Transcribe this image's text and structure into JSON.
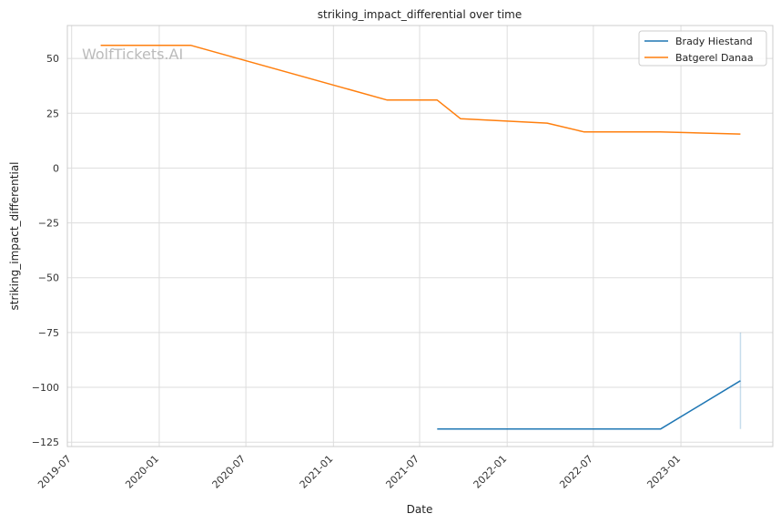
{
  "watermark": "WolfTickets.AI",
  "chart_data": {
    "type": "line",
    "title": "striking_impact_differential over time",
    "xlabel": "Date",
    "ylabel": "striking_impact_differential",
    "x_range": [
      "2019-06-22",
      "2023-07-13"
    ],
    "ylim": [
      -127,
      65
    ],
    "x_ticks": [
      "2019-07",
      "2020-01",
      "2020-07",
      "2021-01",
      "2021-07",
      "2022-01",
      "2022-07",
      "2023-01"
    ],
    "y_ticks": [
      50,
      25,
      0,
      -25,
      -50,
      -75,
      -100,
      -125
    ],
    "y_tick_labels": [
      "50",
      "25",
      "0",
      "−25",
      "−50",
      "−75",
      "−100",
      "−125"
    ],
    "grid": true,
    "legend_position": "top-right",
    "series": [
      {
        "name": "Brady Hiestand",
        "color": "#1f77b4",
        "points": [
          {
            "x": "2021-08-07",
            "y": -119
          },
          {
            "x": "2022-11-19",
            "y": -119
          },
          {
            "x": "2023-05-06",
            "y": -97
          }
        ],
        "band": {
          "x": "2023-05-06",
          "y_low": -119,
          "y_high": -75
        }
      },
      {
        "name": "Batgerel Danaa",
        "color": "#ff7f0e",
        "points": [
          {
            "x": "2019-08-31",
            "y": 56
          },
          {
            "x": "2020-03-07",
            "y": 56
          },
          {
            "x": "2021-04-24",
            "y": 31
          },
          {
            "x": "2021-08-07",
            "y": 31
          },
          {
            "x": "2021-09-25",
            "y": 22.5
          },
          {
            "x": "2022-03-26",
            "y": 20.5
          },
          {
            "x": "2022-06-11",
            "y": 16.5
          },
          {
            "x": "2022-11-19",
            "y": 16.5
          },
          {
            "x": "2023-05-06",
            "y": 15.5
          }
        ]
      }
    ]
  }
}
